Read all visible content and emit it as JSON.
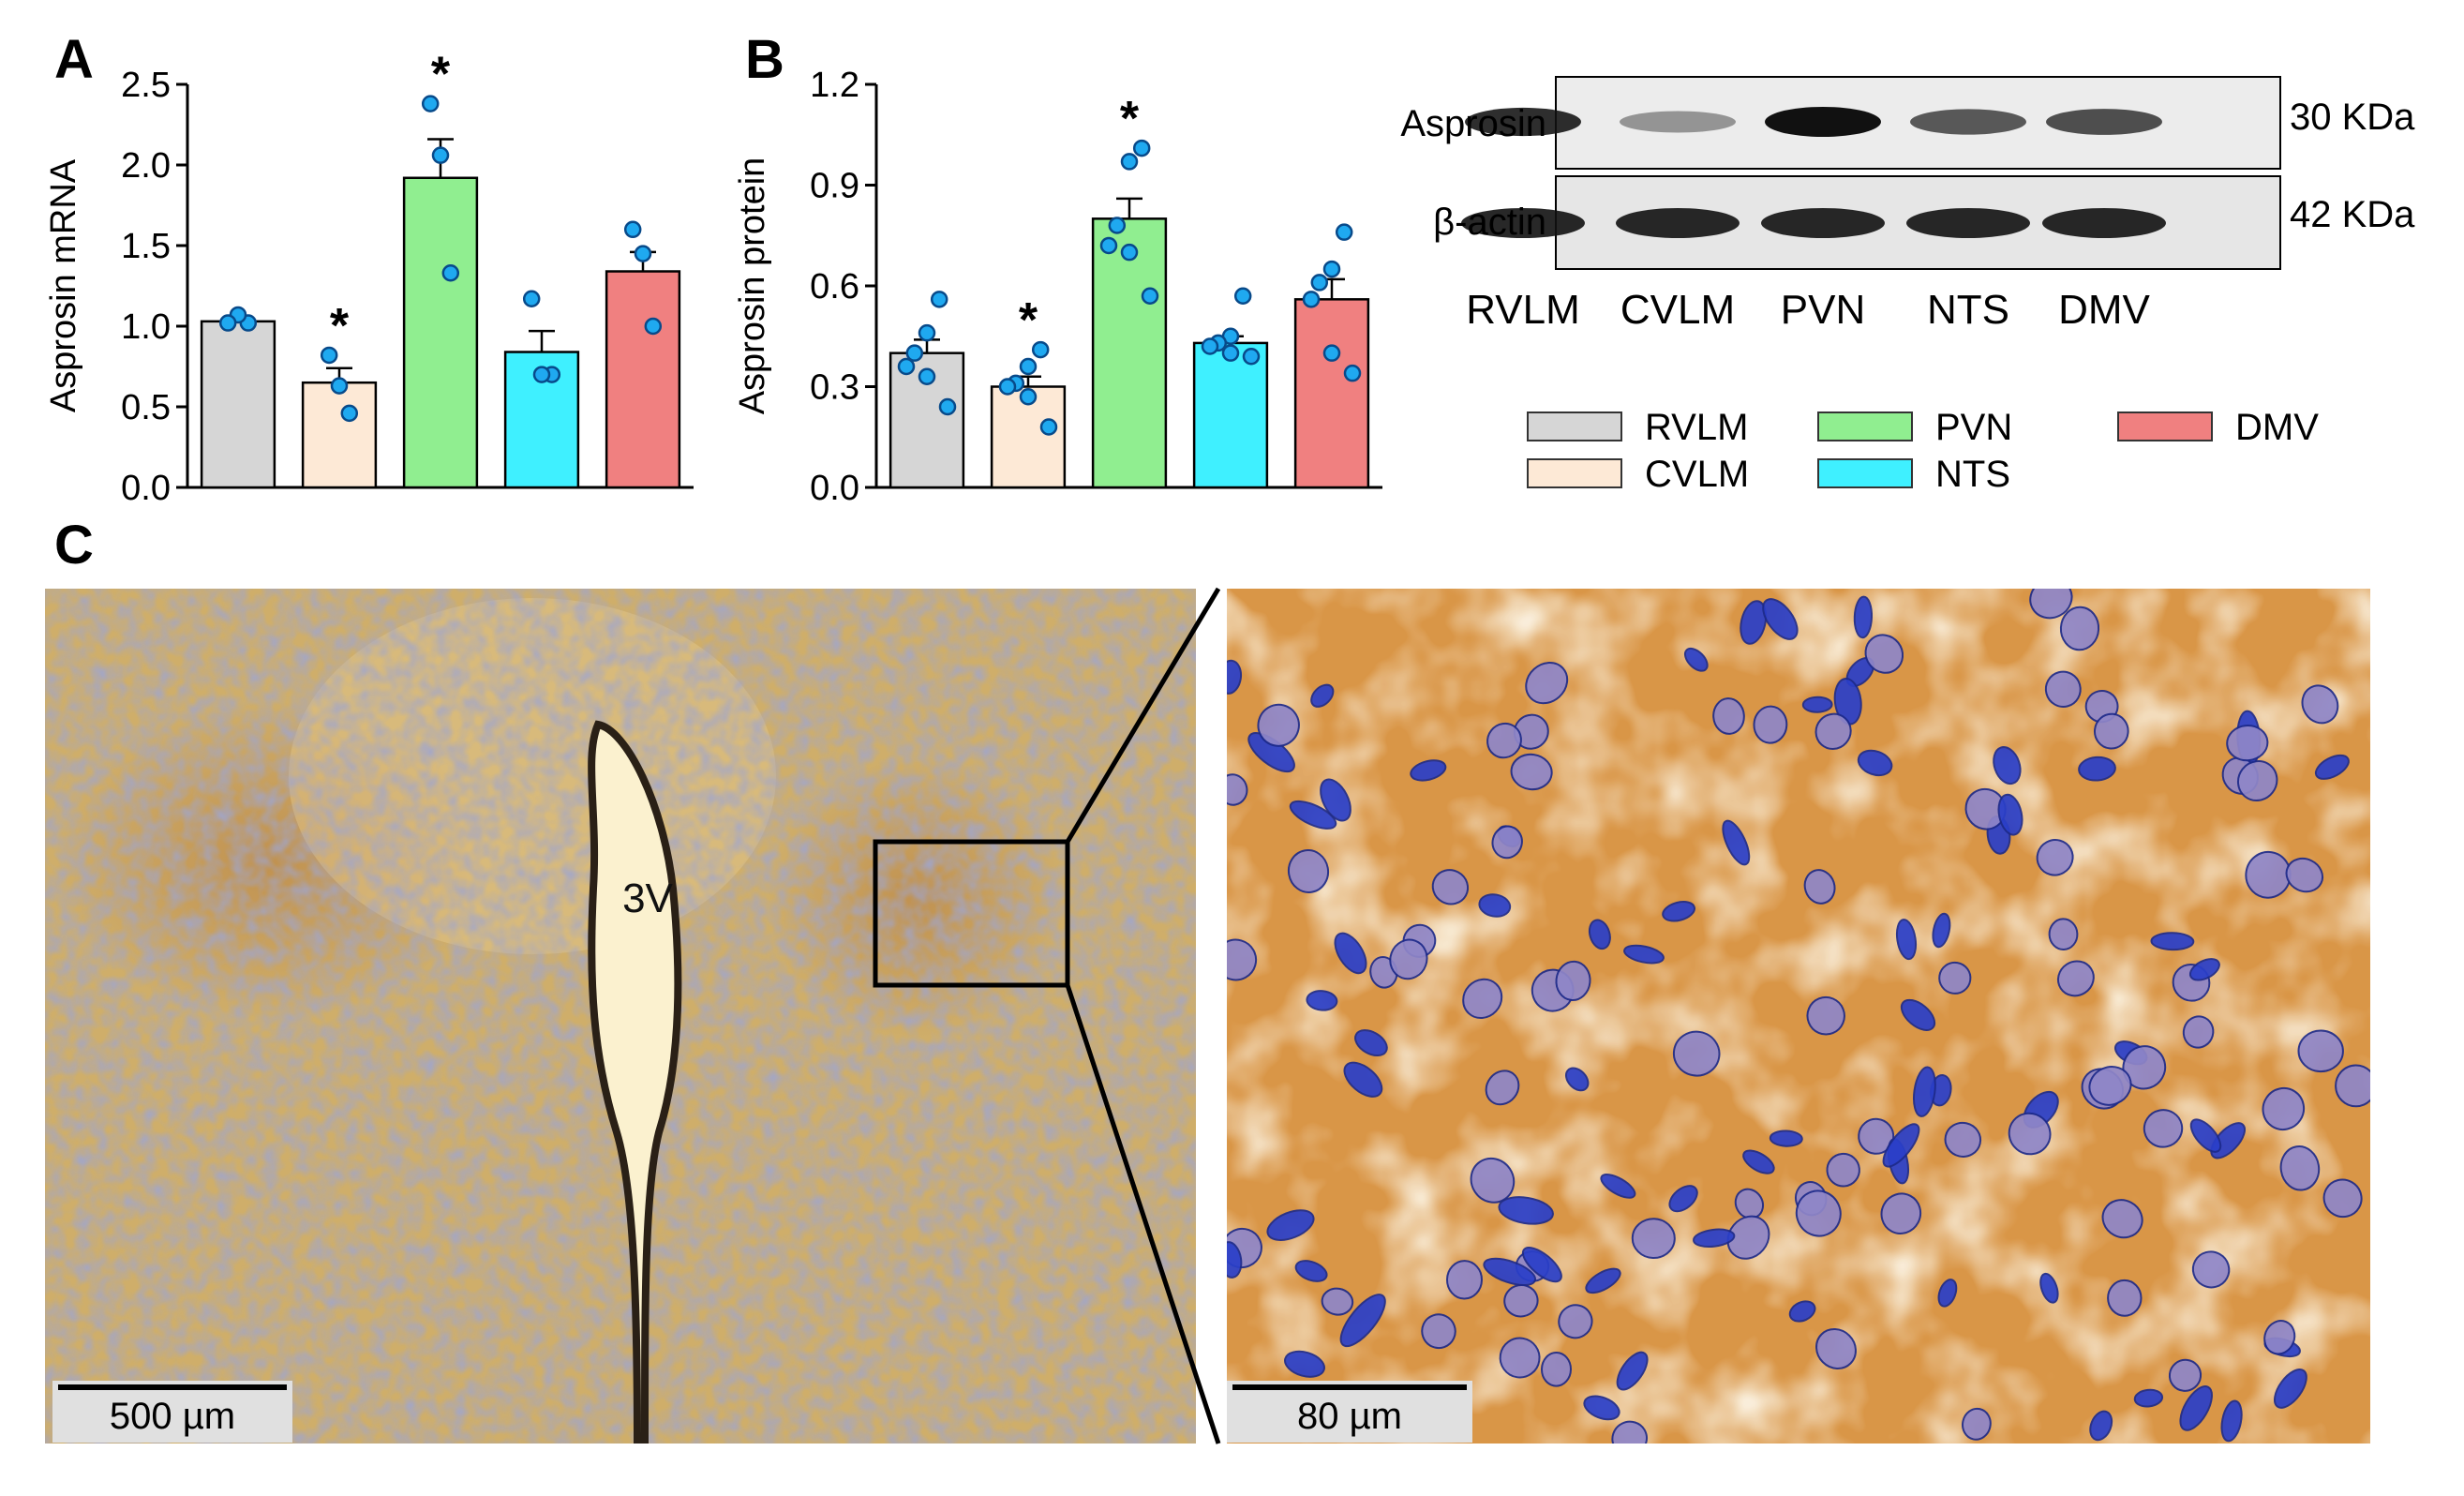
{
  "panel_labels": {
    "a": "A",
    "b": "B",
    "c": "C"
  },
  "colors": {
    "RVLM": "#d6d6d6",
    "CVLM": "#fde9d6",
    "PVN": "#90ee90",
    "NTS": "#3ff0ff",
    "DMV": "#f08080",
    "points": "#1fa9f0"
  },
  "chart_data": [
    {
      "type": "bar",
      "panel": "A",
      "ylabel": "Asprosin mRNA",
      "ylim": [
        0,
        2.5
      ],
      "yticks": [
        "0.0",
        "0.5",
        "1.0",
        "1.5",
        "2.0",
        "2.5"
      ],
      "categories": [
        "RVLM",
        "CVLM",
        "PVN",
        "NTS",
        "DMV"
      ],
      "values": [
        1.03,
        0.65,
        1.92,
        0.84,
        1.34
      ],
      "errors": [
        0.02,
        0.09,
        0.24,
        0.13,
        0.12
      ],
      "significance": [
        "",
        "*",
        "*",
        "",
        ""
      ],
      "points": [
        [
          1.02,
          1.07,
          1.02
        ],
        [
          0.46,
          0.63,
          0.82
        ],
        [
          1.33,
          2.06,
          2.38
        ],
        [
          0.7,
          0.7,
          1.17
        ],
        [
          1.0,
          1.45,
          1.6
        ]
      ]
    },
    {
      "type": "bar",
      "panel": "B",
      "ylabel": "Asprosin protein",
      "ylim": [
        0,
        1.2
      ],
      "yticks": [
        "0.0",
        "0.3",
        "0.6",
        "0.9",
        "1.2"
      ],
      "categories": [
        "RVLM",
        "CVLM",
        "PVN",
        "NTS",
        "DMV"
      ],
      "values": [
        0.4,
        0.3,
        0.8,
        0.43,
        0.56
      ],
      "errors": [
        0.04,
        0.03,
        0.06,
        0.02,
        0.06
      ],
      "significance": [
        "",
        "*",
        "*",
        "",
        ""
      ],
      "points": [
        [
          0.56,
          0.46,
          0.4,
          0.36,
          0.33,
          0.24
        ],
        [
          0.41,
          0.36,
          0.31,
          0.3,
          0.27,
          0.18
        ],
        [
          1.01,
          0.97,
          0.78,
          0.72,
          0.7,
          0.57
        ],
        [
          0.57,
          0.45,
          0.43,
          0.42,
          0.4,
          0.39
        ],
        [
          0.76,
          0.65,
          0.61,
          0.56,
          0.4,
          0.34
        ]
      ]
    }
  ],
  "legend": {
    "items": [
      {
        "label": "RVLM",
        "color": "#d6d6d6"
      },
      {
        "label": "PVN",
        "color": "#90ee90"
      },
      {
        "label": "DMV",
        "color": "#f08080"
      },
      {
        "label": "CVLM",
        "color": "#fde9d6"
      },
      {
        "label": "NTS",
        "color": "#3ff0ff"
      }
    ]
  },
  "western_blot": {
    "row_labels": [
      "Asprosin",
      "β-actin"
    ],
    "sizes": [
      "30 KDa",
      "42 KDa"
    ],
    "lanes": [
      "RVLM",
      "CVLM",
      "PVN",
      "NTS",
      "DMV"
    ],
    "asprosin_band_intensity": [
      0.85,
      0.25,
      1.0,
      0.6,
      0.65
    ],
    "actin_band_intensity": [
      1.0,
      1.0,
      1.0,
      1.0,
      1.0
    ]
  },
  "histology": {
    "left_label": "3V",
    "left_scalebar": "500 µm",
    "right_scalebar": "80 µm"
  }
}
